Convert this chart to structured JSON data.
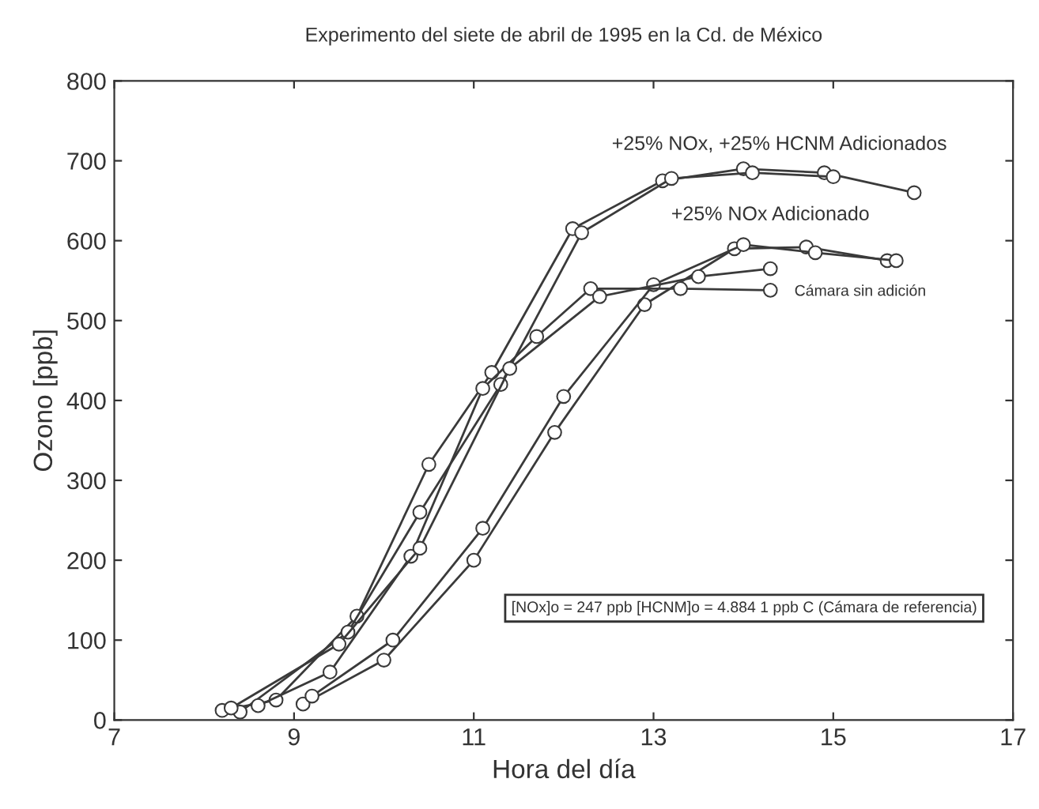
{
  "chart_data": {
    "type": "line",
    "title": "Experimento del siete de abril de 1995 en la Cd. de México",
    "xlabel": "Hora del día",
    "ylabel": "Ozono [ppb]",
    "xlim": [
      7,
      17
    ],
    "xticks": [
      7,
      9,
      11,
      13,
      15,
      17
    ],
    "ylim": [
      0,
      800
    ],
    "yticks": [
      0,
      100,
      200,
      300,
      400,
      500,
      600,
      700,
      800
    ],
    "marker": "circle",
    "line_style": "solid",
    "grid": false,
    "series": [
      {
        "color": "#3a3a3a",
        "x": [
          8.2,
          8.8,
          9.7,
          10.5,
          11.2,
          12.1,
          13.1,
          14.0,
          14.9,
          15.9
        ],
        "values": [
          12,
          25,
          130,
          320,
          435,
          615,
          675,
          690,
          685,
          660
        ]
      },
      {
        "color": "#3a3a3a",
        "x": [
          8.4,
          9.6,
          10.4,
          11.3,
          12.2,
          13.2,
          14.1,
          15.0
        ],
        "values": [
          10,
          110,
          260,
          420,
          610,
          678,
          685,
          680
        ]
      },
      {
        "color": "#3a3a3a",
        "x": [
          9.1,
          10.0,
          11.0,
          11.9,
          12.9,
          13.9,
          14.7,
          15.6
        ],
        "values": [
          20,
          75,
          200,
          360,
          520,
          590,
          592,
          575
        ]
      },
      {
        "color": "#3a3a3a",
        "x": [
          9.2,
          10.1,
          11.1,
          12.0,
          13.0,
          14.0,
          14.8,
          15.7
        ],
        "values": [
          30,
          100,
          240,
          405,
          545,
          595,
          585,
          575
        ]
      },
      {
        "color": "#3a3a3a",
        "x": [
          8.6,
          9.4,
          10.3,
          11.1,
          11.7,
          12.3,
          13.3,
          14.3
        ],
        "values": [
          18,
          60,
          205,
          415,
          480,
          540,
          540,
          538
        ]
      },
      {
        "color": "#3a3a3a",
        "x": [
          8.3,
          9.5,
          10.4,
          11.4,
          12.4,
          13.5,
          14.3
        ],
        "values": [
          15,
          95,
          215,
          440,
          530,
          555,
          565
        ]
      }
    ],
    "annotations": [
      "+25% NOx, +25% HCNM Adicionados",
      "+25% NOx Adicionado",
      "Cámara sin adición",
      "[NOx]o = 247 ppb [HCNM]o = 4.884 1 ppb C (Cámara de referencia)"
    ]
  }
}
